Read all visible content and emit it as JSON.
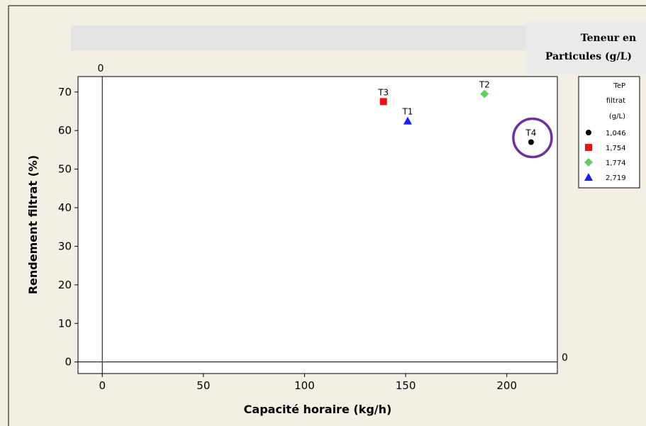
{
  "chart_data": {
    "type": "scatter",
    "title": "",
    "xlabel": "Capacité horaire (kg/h)",
    "ylabel": "Rendement filtrat (%)",
    "xlim": [
      -12,
      225
    ],
    "ylim": [
      -3,
      74
    ],
    "xticks": [
      0,
      50,
      100,
      150,
      200
    ],
    "yticks": [
      0,
      10,
      20,
      30,
      40,
      50,
      60,
      70
    ],
    "reference_lines": {
      "x": 0,
      "y": 0,
      "x_label": "0",
      "y_label": "0"
    },
    "grid": false,
    "legend_title": "Teneur en Particules (g/L)",
    "legend_title_line1": "Teneur en",
    "legend_title_line2": "Particules (g/L)",
    "legend_header_line1": "TeP",
    "legend_header_line2": "filtrat",
    "legend_header_line3": "(g/L)",
    "legend_position": "right",
    "series": [
      {
        "name": "1,046",
        "marker": "circle",
        "color": "#000000",
        "points": [
          {
            "x": 212,
            "y": 57,
            "label": "T4"
          }
        ]
      },
      {
        "name": "1,754",
        "marker": "square",
        "color": "#ee1111",
        "points": [
          {
            "x": 139,
            "y": 67.5,
            "label": "T3"
          }
        ]
      },
      {
        "name": "1,774",
        "marker": "diamond",
        "color": "#5fcf5f",
        "points": [
          {
            "x": 189,
            "y": 69.5,
            "label": "T2"
          }
        ]
      },
      {
        "name": "2,719",
        "marker": "triangle",
        "color": "#1a1aff",
        "points": [
          {
            "x": 151,
            "y": 62.5,
            "label": "T1"
          }
        ]
      }
    ],
    "highlight": {
      "point_label": "T4",
      "shape": "circle",
      "color": "#7030a0"
    }
  }
}
